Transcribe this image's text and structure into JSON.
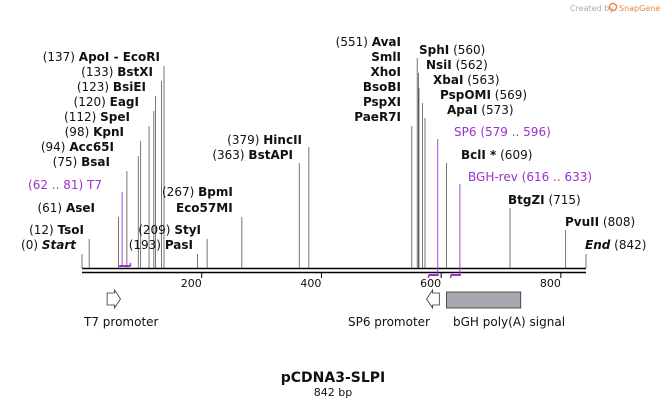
{
  "credit": {
    "text": "Created by",
    "brand": "SnapGene",
    "brand_color": "#e8833a"
  },
  "map": {
    "name": "pCDNA3-SLPI",
    "length_label": "842 bp",
    "length": 842,
    "scale_ticks": [
      {
        "pos": 200,
        "label": "200"
      },
      {
        "pos": 400,
        "label": "400"
      },
      {
        "pos": 600,
        "label": "600"
      },
      {
        "pos": 800,
        "label": "800"
      }
    ]
  },
  "sites": [
    {
      "name": "ApoI",
      "num": "(137)",
      "pos": 137,
      "prefix": "",
      "suffix": " - EcoRI",
      "mark": ""
    },
    {
      "name": "BstXI",
      "num": "(133)",
      "pos": 133,
      "prefix": "",
      "suffix": "",
      "mark": ""
    },
    {
      "name": "BsiEI",
      "num": "(123)",
      "pos": 123,
      "prefix": "",
      "suffix": "",
      "mark": ""
    },
    {
      "name": "EagI",
      "num": "(120)",
      "pos": 120,
      "prefix": "",
      "suffix": "",
      "mark": ""
    },
    {
      "name": "SpeI",
      "num": "(112)",
      "pos": 112,
      "prefix": "",
      "suffix": "",
      "mark": ""
    },
    {
      "name": "KpnI",
      "num": "(98)",
      "pos": 98,
      "prefix": "",
      "suffix": "",
      "mark": ""
    },
    {
      "name": "Acc65I",
      "num": "(94)",
      "pos": 94,
      "prefix": "",
      "suffix": "",
      "mark": ""
    },
    {
      "name": "BsaI",
      "num": "(75)",
      "pos": 75,
      "prefix": "",
      "suffix": "",
      "mark": ""
    },
    {
      "name": "AseI",
      "num": "(61)",
      "pos": 61,
      "prefix": "",
      "suffix": "",
      "mark": ""
    },
    {
      "name": "TsoI",
      "num": "(12)",
      "pos": 12,
      "prefix": "",
      "suffix": "",
      "mark": ""
    },
    {
      "name": "PasI",
      "num": "(193)",
      "pos": 193,
      "prefix": "",
      "suffix": "",
      "mark": ""
    },
    {
      "name": "StyI",
      "num": "(209)",
      "pos": 209,
      "prefix": "",
      "suffix": "",
      "mark": ""
    },
    {
      "name": "Eco57MI",
      "num": "",
      "pos": 267,
      "prefix": "",
      "suffix": "",
      "mark": ""
    },
    {
      "name": "BpmI",
      "num": "(267)",
      "pos": 267,
      "prefix": "",
      "suffix": "",
      "mark": ""
    },
    {
      "name": "BstAPI",
      "num": "(363)",
      "pos": 363,
      "prefix": "",
      "suffix": "",
      "mark": ""
    },
    {
      "name": "HincII",
      "num": "(379)",
      "pos": 379,
      "prefix": "",
      "suffix": "",
      "mark": ""
    },
    {
      "name": "AvaI",
      "num": "(551)",
      "pos": 551,
      "prefix": "",
      "suffix": "",
      "mark": ""
    },
    {
      "name": "SmlI",
      "num": "",
      "pos": 551,
      "prefix": "",
      "suffix": "",
      "mark": ""
    },
    {
      "name": "XhoI",
      "num": "",
      "pos": 551,
      "prefix": "",
      "suffix": "",
      "mark": ""
    },
    {
      "name": "BsoBI",
      "num": "",
      "pos": 551,
      "prefix": "",
      "suffix": "",
      "mark": ""
    },
    {
      "name": "PspXI",
      "num": "",
      "pos": 551,
      "prefix": "",
      "suffix": "",
      "mark": ""
    },
    {
      "name": "PaeR7I",
      "num": "",
      "pos": 551,
      "prefix": "",
      "suffix": "",
      "mark": ""
    },
    {
      "name": "SphI",
      "num": "(560)",
      "pos": 560,
      "prefix": "",
      "suffix": "",
      "mark": ""
    },
    {
      "name": "NsiI",
      "num": "(562)",
      "pos": 562,
      "prefix": "",
      "suffix": "",
      "mark": ""
    },
    {
      "name": "XbaI",
      "num": "(563)",
      "pos": 563,
      "prefix": "",
      "suffix": "",
      "mark": ""
    },
    {
      "name": "PspOMI",
      "num": "(569)",
      "pos": 569,
      "prefix": "",
      "suffix": "",
      "mark": ""
    },
    {
      "name": "ApaI",
      "num": "(573)",
      "pos": 573,
      "prefix": "",
      "suffix": "",
      "mark": ""
    },
    {
      "name": "BclI",
      "num": "(609)",
      "pos": 609,
      "prefix": "",
      "suffix": "",
      "mark": " *"
    },
    {
      "name": "BtgZI",
      "num": "(715)",
      "pos": 715,
      "prefix": "",
      "suffix": "",
      "mark": ""
    },
    {
      "name": "PvuII",
      "num": "(808)",
      "pos": 808,
      "prefix": "",
      "suffix": "",
      "mark": ""
    }
  ],
  "ends": {
    "start": {
      "label": "Start",
      "num": "(0)"
    },
    "end": {
      "label": "End",
      "num": "(842)"
    }
  },
  "primers": [
    {
      "name": "T7",
      "range": "(62 .. 81)",
      "start": 62,
      "end": 81,
      "color": "#9a32cd"
    },
    {
      "name": "SP6",
      "range": "(579 .. 596)",
      "start": 579,
      "end": 596,
      "color": "#9a32cd"
    },
    {
      "name": "BGH-rev",
      "range": "(616 .. 633)",
      "start": 616,
      "end": 633,
      "color": "#9a32cd"
    }
  ],
  "features": [
    {
      "name": "T7 promoter",
      "start": 42,
      "end": 61,
      "type": "promoter",
      "direction": "forward",
      "color": "#ffffff"
    },
    {
      "name": "SP6 promoter",
      "start": 579,
      "end": 597,
      "type": "promoter",
      "direction": "reverse",
      "color": "#ffffff"
    },
    {
      "name": "bGH poly(A) signal",
      "start": 609,
      "end": 733,
      "type": "polyA",
      "direction": "none",
      "color": "#a8a8b0"
    }
  ]
}
